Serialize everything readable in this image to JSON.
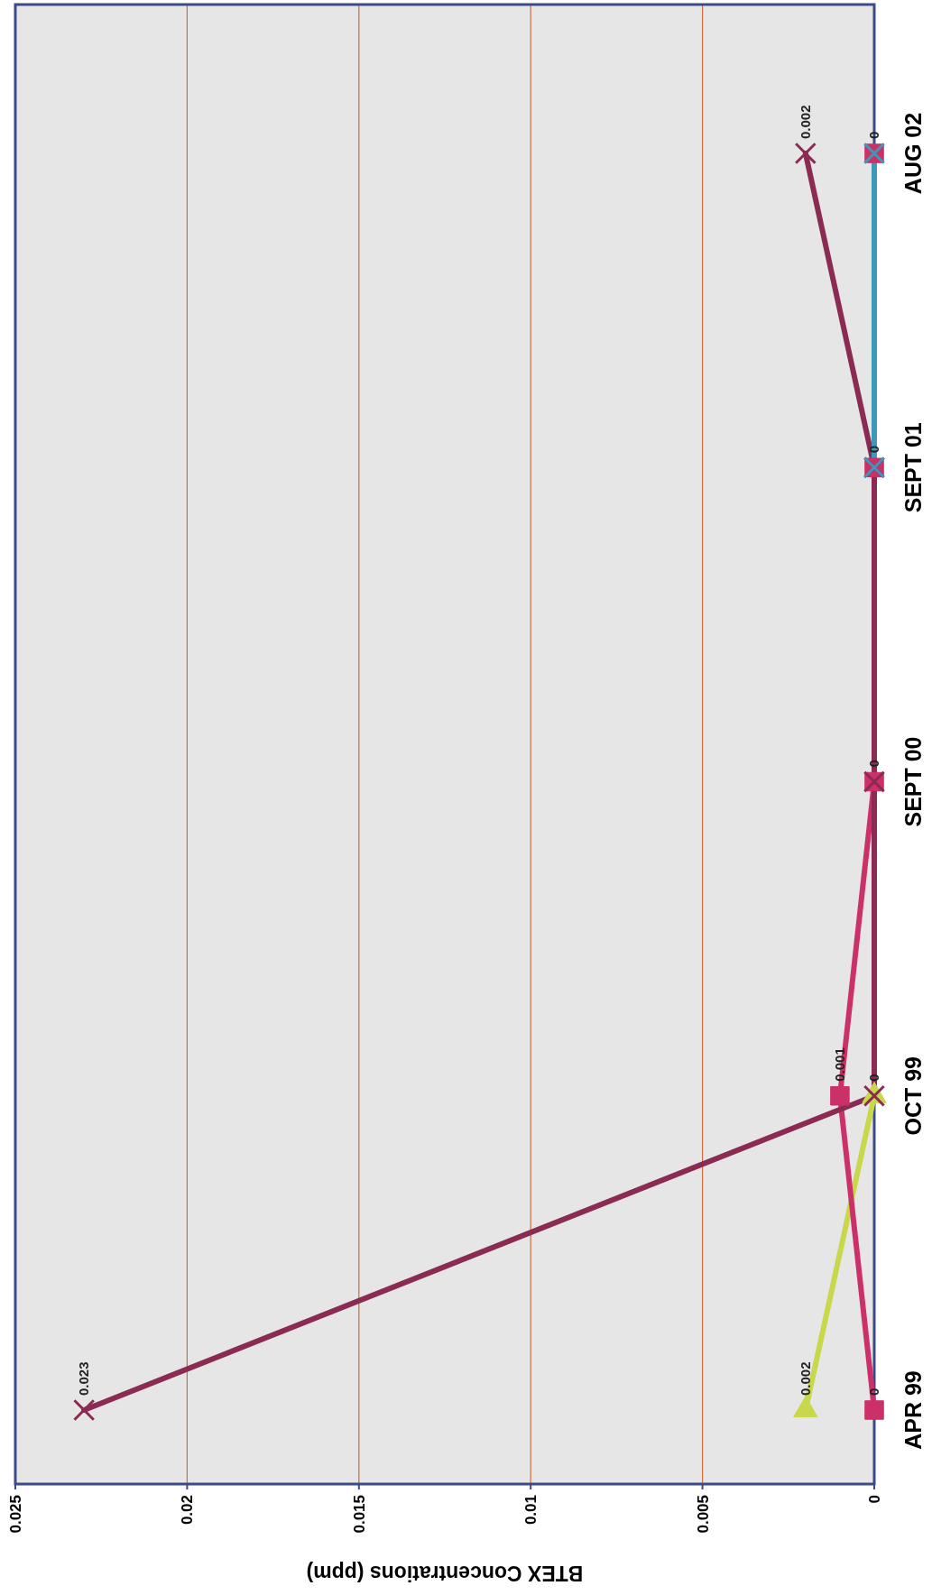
{
  "chart_data": {
    "type": "line",
    "orientation": "horizontal",
    "xlabel": "BTEX Concentrations (ppm)",
    "categories": [
      "AUG 02",
      "SEPT 01",
      "SEPT 00",
      "OCT 99",
      "APR 99"
    ],
    "xlim": [
      0.025,
      0
    ],
    "xticks": [
      0.025,
      0.02,
      0.015,
      0.01,
      0.005,
      0
    ],
    "grid": "x",
    "series": [
      {
        "color": "#c8d84a",
        "marker": "triangle",
        "values": [
          null,
          null,
          null,
          0,
          0.002
        ],
        "value_labels": [
          null,
          null,
          null,
          null,
          "0.002"
        ]
      },
      {
        "color": "#cc3068",
        "marker": "square",
        "values": [
          0,
          0,
          0,
          0.001,
          0
        ],
        "value_labels": [
          null,
          null,
          null,
          "0.001",
          "0"
        ]
      },
      {
        "color": "#8b2a52",
        "marker": "cross",
        "values": [
          0.002,
          0,
          0,
          0,
          0.023
        ],
        "value_labels": [
          "0.002",
          "0",
          "0",
          "0",
          "0.023"
        ]
      },
      {
        "color": "#3a9ab8",
        "marker": "cross",
        "values": [
          0,
          0,
          null,
          null,
          null
        ],
        "value_labels": [
          "0",
          null,
          null,
          null,
          null
        ]
      }
    ]
  }
}
